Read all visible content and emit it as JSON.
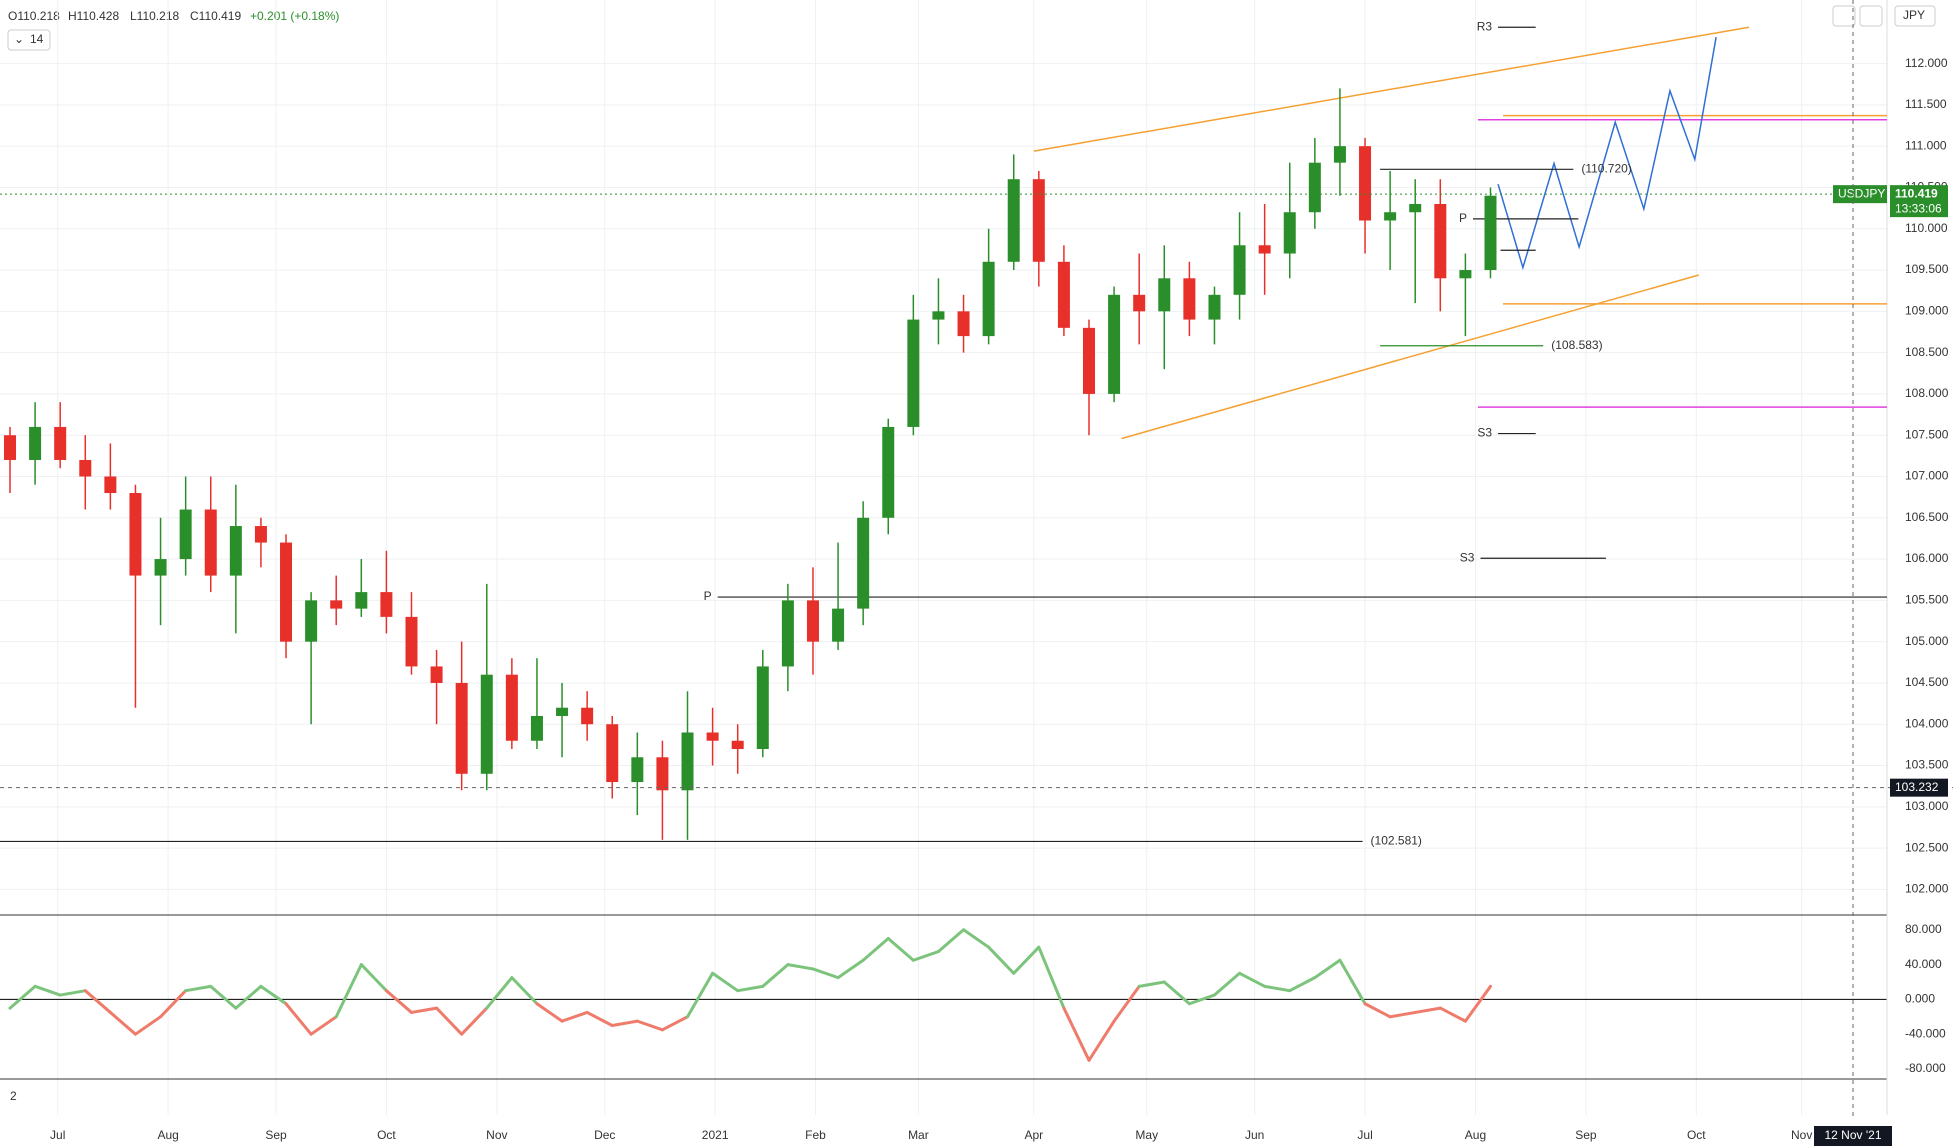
{
  "chart_data": {
    "type": "candlestick",
    "header": {
      "open": "O110.218",
      "high": "H110.428",
      "low": "L110.218",
      "close": "C110.419",
      "change": "+0.201 (+0.18%)"
    },
    "indicator_length": "14",
    "currency": "JPY",
    "symbol": "USDJPY",
    "last_price": 110.419,
    "countdown": "13:33:06",
    "crosshair": {
      "value": 103.232,
      "label": "103.232"
    },
    "crosshair_date": "12 Nov '21",
    "pane2_label": "2",
    "x": [
      0,
      1,
      2,
      3,
      4,
      5,
      6,
      7,
      8,
      9,
      10,
      11,
      12,
      13,
      14,
      15,
      16,
      17,
      18,
      19,
      20,
      21,
      22,
      23,
      24,
      25,
      26,
      27,
      28,
      29,
      30,
      31,
      32,
      33,
      34,
      35,
      36,
      37,
      38,
      39,
      40,
      41,
      42,
      43,
      44,
      45,
      46,
      47,
      48,
      49,
      50,
      51,
      52,
      53,
      54,
      55,
      56,
      57,
      58,
      59
    ],
    "open": [
      107.5,
      107.2,
      107.6,
      107.2,
      107.0,
      106.8,
      105.8,
      106.0,
      106.6,
      105.8,
      106.4,
      106.2,
      105.0,
      105.5,
      105.4,
      105.6,
      105.3,
      104.7,
      104.5,
      103.4,
      104.6,
      103.8,
      104.1,
      104.2,
      104.0,
      103.3,
      103.6,
      103.2,
      103.9,
      103.8,
      103.7,
      104.7,
      105.5,
      105.0,
      105.4,
      106.5,
      107.6,
      108.9,
      109.0,
      108.7,
      109.6,
      110.6,
      109.6,
      108.8,
      108.0,
      109.2,
      109.0,
      109.4,
      108.9,
      109.2,
      109.8,
      109.7,
      110.2,
      110.8,
      111.0,
      110.1,
      110.2,
      110.3,
      109.4,
      109.5
    ],
    "high": [
      107.6,
      107.9,
      107.9,
      107.5,
      107.4,
      106.9,
      106.5,
      107.0,
      107.0,
      106.9,
      106.5,
      106.3,
      105.6,
      105.8,
      106.0,
      106.1,
      105.6,
      104.9,
      105.0,
      105.7,
      104.8,
      104.8,
      104.5,
      104.4,
      104.1,
      103.9,
      103.8,
      104.4,
      104.2,
      104.0,
      104.9,
      105.7,
      105.9,
      106.2,
      106.7,
      107.7,
      109.2,
      109.4,
      109.2,
      110.0,
      110.9,
      110.7,
      109.8,
      108.9,
      109.3,
      109.7,
      109.8,
      109.6,
      109.3,
      110.2,
      110.3,
      110.8,
      111.1,
      111.7,
      111.1,
      110.7,
      110.6,
      110.6,
      109.7,
      110.5
    ],
    "low": [
      106.8,
      106.9,
      107.1,
      106.6,
      106.6,
      104.2,
      105.2,
      105.8,
      105.6,
      105.1,
      105.9,
      104.8,
      104.0,
      105.2,
      105.3,
      105.1,
      104.6,
      104.0,
      103.2,
      103.2,
      103.7,
      103.7,
      103.6,
      103.8,
      103.1,
      102.9,
      102.6,
      102.6,
      103.5,
      103.4,
      103.6,
      104.4,
      104.6,
      104.9,
      105.2,
      106.3,
      107.5,
      108.6,
      108.5,
      108.6,
      109.5,
      109.3,
      108.7,
      107.5,
      107.9,
      108.6,
      108.3,
      108.7,
      108.6,
      108.9,
      109.2,
      109.4,
      110.0,
      110.4,
      109.7,
      109.5,
      109.1,
      109.0,
      108.7,
      109.4
    ],
    "close": [
      107.2,
      107.6,
      107.2,
      107.0,
      106.8,
      105.8,
      106.0,
      106.6,
      105.8,
      106.4,
      106.2,
      105.0,
      105.5,
      105.4,
      105.6,
      105.3,
      104.7,
      104.5,
      103.4,
      104.6,
      103.8,
      104.1,
      104.2,
      104.0,
      103.3,
      103.6,
      103.2,
      103.9,
      103.8,
      103.7,
      104.7,
      105.5,
      105.0,
      105.4,
      106.5,
      107.6,
      108.9,
      109.0,
      108.7,
      109.6,
      110.6,
      109.6,
      108.8,
      108.0,
      109.2,
      109.0,
      109.4,
      108.9,
      109.2,
      109.8,
      109.7,
      110.2,
      110.8,
      111.0,
      110.1,
      110.2,
      110.3,
      109.4,
      109.5,
      110.4
    ],
    "up_color": "#2a8f2a",
    "down_color": "#e8302b",
    "oscillator": {
      "values": [
        -10,
        15,
        5,
        10,
        -15,
        -40,
        -20,
        10,
        15,
        -10,
        15,
        -5,
        -40,
        -20,
        40,
        10,
        -15,
        -10,
        -40,
        -10,
        25,
        -5,
        -25,
        -15,
        -30,
        -25,
        -35,
        -20,
        30,
        10,
        15,
        40,
        35,
        25,
        45,
        70,
        45,
        55,
        80,
        60,
        30,
        60,
        -10,
        -70,
        -25,
        15,
        20,
        -5,
        5,
        30,
        15,
        10,
        25,
        45,
        -5,
        -20,
        -15,
        -10,
        -25,
        15
      ],
      "ylim": [
        -91.5,
        97
      ],
      "yticks": [
        {
          "value": 80,
          "label": "80.000"
        },
        {
          "value": 40,
          "label": "40.000"
        },
        {
          "value": 0,
          "label": "0.000"
        },
        {
          "value": -40,
          "label": "-40.000"
        },
        {
          "value": -80,
          "label": "-80.000"
        }
      ],
      "up_color": "#7cc47c",
      "down_color": "#ef7b6b"
    },
    "levels": [
      {
        "label": "R3",
        "value": 112.44,
        "from": 59.7,
        "to": 61.2,
        "color": "#222"
      },
      {
        "label": "(110.720)",
        "value": 110.72,
        "from": 55.0,
        "to": 62.7,
        "color": "#222"
      },
      {
        "label": "P",
        "value": 110.12,
        "from": 58.7,
        "to": 62.9,
        "color": "#222"
      },
      {
        "label": "P",
        "value": 109.74,
        "from": 59.8,
        "to": 61.2,
        "color": "#222"
      },
      {
        "label": "(108.583)",
        "value": 108.583,
        "from": 55.0,
        "to": 61.5,
        "color": "#2a8f2a"
      },
      {
        "label": "S3",
        "value": 107.52,
        "from": 59.7,
        "to": 61.2,
        "color": "#222"
      },
      {
        "label": "S3",
        "value": 106.01,
        "from": 59.0,
        "to": 64.0,
        "color": "#222"
      },
      {
        "label": "P",
        "value": 105.54,
        "from": 28.6,
        "to": 75.2,
        "color": "#222"
      },
      {
        "label": "(102.581)",
        "value": 102.581,
        "from": 0,
        "to": 54.3,
        "color": "#222"
      }
    ],
    "drawings": [
      {
        "color": "#f5a030",
        "points": [
          [
            41.2,
            110.94
          ],
          [
            69.7,
            112.44
          ]
        ]
      },
      {
        "color": "#f5a030",
        "points": [
          [
            44.7,
            107.46
          ],
          [
            67.7,
            109.44
          ]
        ]
      },
      {
        "color": "#f5a030",
        "points": [
          [
            59.9,
            111.37
          ],
          [
            75.2,
            111.37
          ]
        ]
      },
      {
        "color": "#f5a030",
        "points": [
          [
            59.9,
            109.09
          ],
          [
            75.2,
            109.09
          ]
        ]
      },
      {
        "color": "#e040e0",
        "points": [
          [
            58.9,
            111.32
          ],
          [
            75.2,
            111.32
          ]
        ]
      },
      {
        "color": "#e040e0",
        "points": [
          [
            58.9,
            107.84
          ],
          [
            75.2,
            107.84
          ]
        ]
      },
      {
        "color": "#2f6fd6",
        "points": [
          [
            59.7,
            110.54
          ],
          [
            60.69,
            109.53
          ],
          [
            61.93,
            110.79
          ],
          [
            62.93,
            109.78
          ],
          [
            64.37,
            111.29
          ],
          [
            65.51,
            110.24
          ],
          [
            66.55,
            111.67
          ],
          [
            67.54,
            110.84
          ],
          [
            68.39,
            112.32
          ]
        ]
      }
    ],
    "xlim": [
      0,
      75.2
    ],
    "ylim": [
      101.69,
      112.77
    ],
    "xticks": [
      {
        "value": 2.3,
        "label": "Jul"
      },
      {
        "value": 6.7,
        "label": "Aug"
      },
      {
        "value": 11.0,
        "label": "Sep"
      },
      {
        "value": 15.4,
        "label": "Oct"
      },
      {
        "value": 19.8,
        "label": "Nov"
      },
      {
        "value": 24.1,
        "label": "Dec"
      },
      {
        "value": 28.5,
        "label": "2021"
      },
      {
        "value": 32.5,
        "label": "Feb"
      },
      {
        "value": 36.6,
        "label": "Mar"
      },
      {
        "value": 41.2,
        "label": "Apr"
      },
      {
        "value": 45.7,
        "label": "May"
      },
      {
        "value": 50.0,
        "label": "Jun"
      },
      {
        "value": 54.4,
        "label": "Jul"
      },
      {
        "value": 58.8,
        "label": "Aug"
      },
      {
        "value": 63.2,
        "label": "Sep"
      },
      {
        "value": 67.6,
        "label": "Oct"
      },
      {
        "value": 71.8,
        "label": "Nov"
      }
    ],
    "yticks": [
      {
        "value": 102,
        "label": "102.000"
      },
      {
        "value": 102.5,
        "label": "102.500"
      },
      {
        "value": 103,
        "label": "103.000"
      },
      {
        "value": 103.5,
        "label": "103.500"
      },
      {
        "value": 104,
        "label": "104.000"
      },
      {
        "value": 104.5,
        "label": "104.500"
      },
      {
        "value": 105,
        "label": "105.000"
      },
      {
        "value": 105.5,
        "label": "105.500"
      },
      {
        "value": 106,
        "label": "106.000"
      },
      {
        "value": 106.5,
        "label": "106.500"
      },
      {
        "value": 107,
        "label": "107.000"
      },
      {
        "value": 107.5,
        "label": "107.500"
      },
      {
        "value": 108,
        "label": "108.000"
      },
      {
        "value": 108.5,
        "label": "108.500"
      },
      {
        "value": 109,
        "label": "109.000"
      },
      {
        "value": 109.5,
        "label": "109.500"
      },
      {
        "value": 110,
        "label": "110.000"
      },
      {
        "value": 110.5,
        "label": "110.500"
      },
      {
        "value": 111,
        "label": "111.000"
      },
      {
        "value": 111.5,
        "label": "111.500"
      },
      {
        "value": 112,
        "label": "112.000"
      }
    ],
    "grid": true
  }
}
